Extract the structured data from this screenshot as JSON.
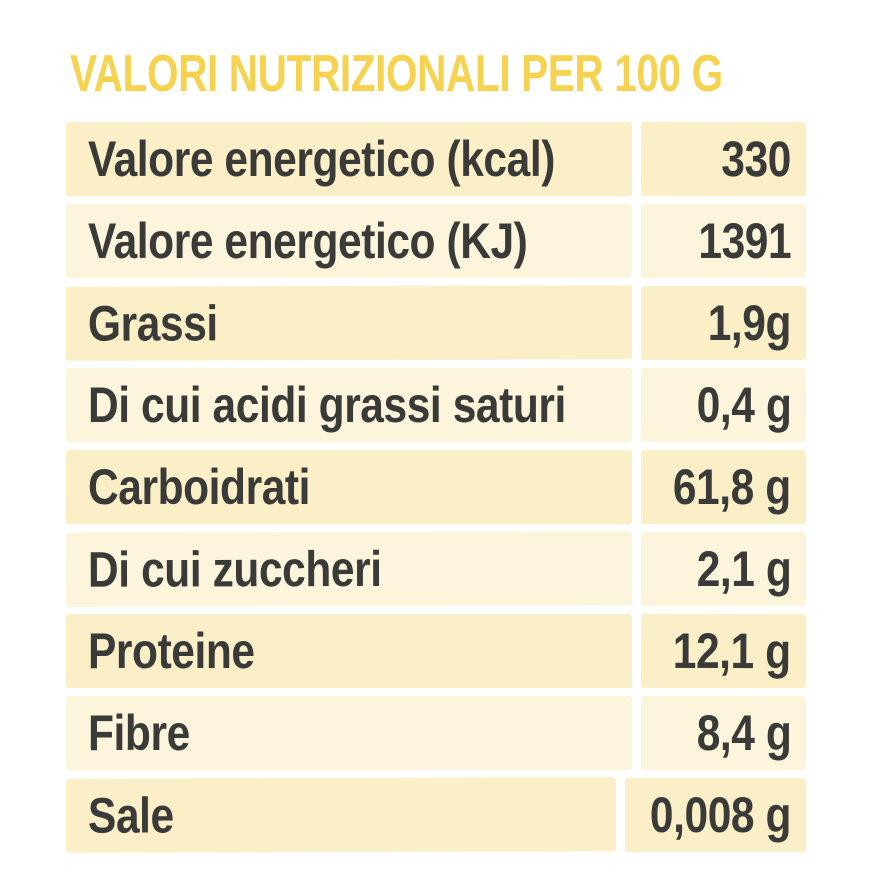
{
  "title": "VALORI NUTRIZIONALI PER 100 G",
  "colors": {
    "background": "#ffffff",
    "title_text": "#f5d24f",
    "row_dark": "#faefc7",
    "row_light": "#fcf5dc",
    "cell_text": "#3a3a38"
  },
  "table": {
    "rows": [
      {
        "label": "Valore energetico (kcal)",
        "value": "330"
      },
      {
        "label": "Valore energetico (KJ)",
        "value": "1391"
      },
      {
        "label": "Grassi",
        "value": "1,9g"
      },
      {
        "label": "Di cui acidi grassi saturi",
        "value": "0,4 g"
      },
      {
        "label": "Carboidrati",
        "value": "61,8 g"
      },
      {
        "label": "Di cui zuccheri",
        "value": "2,1 g"
      },
      {
        "label": "Proteine",
        "value": "12,1 g"
      },
      {
        "label": "Fibre",
        "value": "8,4 g"
      },
      {
        "label": "Sale",
        "value": "0,008 g"
      }
    ]
  }
}
